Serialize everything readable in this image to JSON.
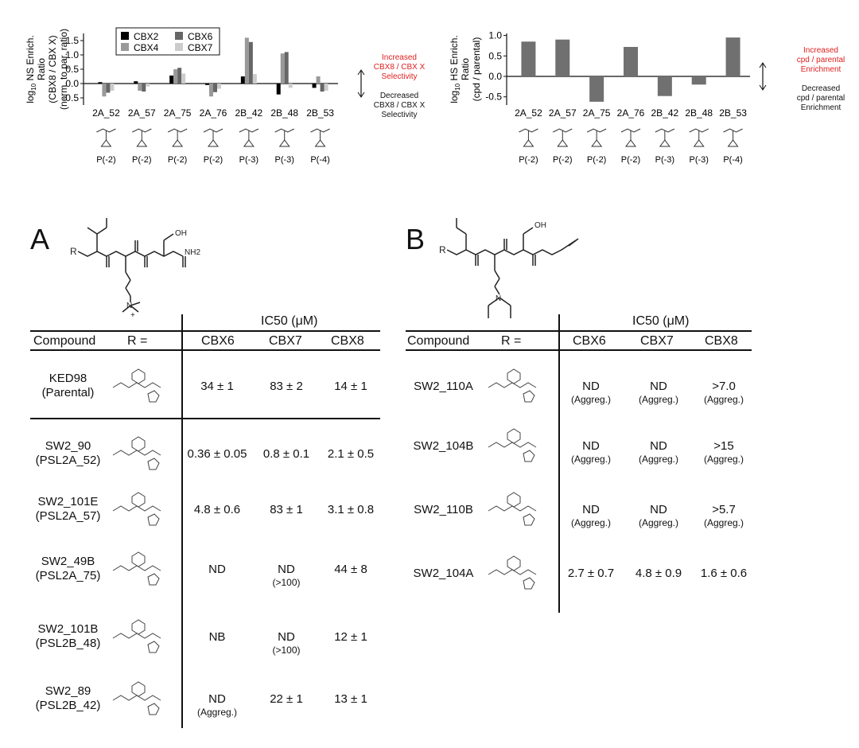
{
  "chart_data": [
    {
      "type": "bar",
      "categories": [
        "2A_52",
        "2A_57",
        "2A_75",
        "2A_76",
        "2B_42",
        "2B_48",
        "2B_53"
      ],
      "series": [
        {
          "name": "CBX2",
          "values": [
            0.05,
            0.08,
            0.28,
            -0.05,
            0.25,
            -0.38,
            -0.15
          ],
          "color": "#000000"
        },
        {
          "name": "CBX4",
          "values": [
            -0.45,
            -0.25,
            0.5,
            -0.45,
            1.6,
            1.05,
            0.25
          ],
          "color": "#999999"
        },
        {
          "name": "CBX6",
          "values": [
            -0.32,
            -0.28,
            0.55,
            -0.3,
            1.45,
            1.1,
            -0.28
          ],
          "color": "#666666"
        },
        {
          "name": "CBX7",
          "values": [
            -0.25,
            -0.1,
            0.35,
            -0.18,
            0.33,
            -0.15,
            -0.25
          ],
          "color": "#cccccc"
        }
      ],
      "ylabel_lines": [
        "log10 NS Enrich.",
        "Ratio",
        "(CBX8 / CBX X)",
        "(norm. to par. ratio)"
      ],
      "ylim": [
        -0.75,
        1.75
      ],
      "yticks": [
        "-0.5",
        "0.0",
        "0.5",
        "1.0",
        "1.5"
      ],
      "tick_values": [
        -0.5,
        0,
        0.5,
        1,
        1.5
      ],
      "legend": "top-left",
      "residue_labels": [
        "P(-2)",
        "P(-2)",
        "P(-2)",
        "P(-2)",
        "P(-3)",
        "P(-3)",
        "P(-4)"
      ],
      "annotation_up": [
        "Increased",
        "CBX8 / CBX X",
        "Selectivity"
      ],
      "annotation_down": [
        "Decreased",
        "CBX8 / CBX X",
        "Selectivity"
      ]
    },
    {
      "type": "bar",
      "categories": [
        "2A_52",
        "2A_57",
        "2A_75",
        "2A_76",
        "2B_42",
        "2B_48",
        "2B_53"
      ],
      "series": [
        {
          "values": [
            0.85,
            0.9,
            -0.62,
            0.72,
            -0.48,
            -0.2,
            0.95
          ],
          "color": "#707070"
        }
      ],
      "ylabel_lines": [
        "log10 HS Enrich.",
        "Ratio",
        "(cpd / parental)"
      ],
      "ylim": [
        -0.7,
        1.05
      ],
      "yticks": [
        "-0.5",
        "0.0",
        "0.5",
        "1.0"
      ],
      "tick_values": [
        -0.5,
        0,
        0.5,
        1
      ],
      "residue_labels": [
        "P(-2)",
        "P(-2)",
        "P(-2)",
        "P(-2)",
        "P(-3)",
        "P(-3)",
        "P(-4)"
      ],
      "annotation_up": [
        "Increased",
        "cpd / parental",
        "Enrichment"
      ],
      "annotation_down": [
        "Decreased",
        "cpd / parental",
        "Enrichment"
      ]
    }
  ],
  "panelA": {
    "letter": "A",
    "ic50_header": "IC50 (μM)",
    "col_compound": "Compound",
    "col_r": "R =",
    "columns": [
      "CBX6",
      "CBX7",
      "CBX8"
    ],
    "rows": [
      {
        "name": "KED98",
        "sub": "(Parental)",
        "v": [
          {
            "main": "34 ± 1",
            "note": ""
          },
          {
            "main": "83 ± 2",
            "note": ""
          },
          {
            "main": "14 ± 1",
            "note": ""
          }
        ]
      },
      {
        "name": "SW2_90",
        "sub": "(PSL2A_52)",
        "v": [
          {
            "main": "0.36 ± 0.05",
            "note": ""
          },
          {
            "main": "0.8 ± 0.1",
            "note": ""
          },
          {
            "main": "2.1 ± 0.5",
            "note": ""
          }
        ]
      },
      {
        "name": "SW2_101E",
        "sub": "(PSL2A_57)",
        "v": [
          {
            "main": "4.8 ± 0.6",
            "note": ""
          },
          {
            "main": "83 ± 1",
            "note": ""
          },
          {
            "main": "3.1 ± 0.8",
            "note": ""
          }
        ]
      },
      {
        "name": "SW2_49B",
        "sub": "(PSL2A_75)",
        "v": [
          {
            "main": "ND",
            "note": ""
          },
          {
            "main": "ND",
            "note": "(>100)"
          },
          {
            "main": "44 ± 8",
            "note": ""
          }
        ]
      },
      {
        "name": "SW2_101B",
        "sub": "(PSL2B_48)",
        "v": [
          {
            "main": "NB",
            "note": ""
          },
          {
            "main": "ND",
            "note": "(>100)"
          },
          {
            "main": "12 ± 1",
            "note": ""
          }
        ]
      },
      {
        "name": "SW2_89",
        "sub": "(PSL2B_42)",
        "v": [
          {
            "main": "ND",
            "note": "(Aggreg.)"
          },
          {
            "main": "22 ± 1",
            "note": ""
          },
          {
            "main": "13 ± 1",
            "note": ""
          }
        ]
      }
    ]
  },
  "panelB": {
    "letter": "B",
    "ic50_header": "IC50 (μM)",
    "col_compound": "Compound",
    "col_r": "R =",
    "columns": [
      "CBX6",
      "CBX7",
      "CBX8"
    ],
    "rows": [
      {
        "name": "SW2_110A",
        "v": [
          {
            "main": "ND",
            "note": "(Aggreg.)"
          },
          {
            "main": "ND",
            "note": "(Aggreg.)"
          },
          {
            "main": ">7.0",
            "note": "(Aggreg.)"
          }
        ]
      },
      {
        "name": "SW2_104B",
        "v": [
          {
            "main": "ND",
            "note": "(Aggreg.)"
          },
          {
            "main": "ND",
            "note": "(Aggreg.)"
          },
          {
            "main": ">15",
            "note": "(Aggreg.)"
          }
        ]
      },
      {
        "name": "SW2_110B",
        "v": [
          {
            "main": "ND",
            "note": "(Aggreg.)"
          },
          {
            "main": "ND",
            "note": "(Aggreg.)"
          },
          {
            "main": ">5.7",
            "note": "(Aggreg.)"
          }
        ]
      },
      {
        "name": "SW2_104A",
        "v": [
          {
            "main": "2.7 ± 0.7",
            "note": ""
          },
          {
            "main": "4.8 ± 0.9",
            "note": ""
          },
          {
            "main": "1.6 ± 0.6",
            "note": ""
          }
        ]
      }
    ]
  },
  "structure_labels": {
    "oh": "OH",
    "nh2": "NH2",
    "n_plus": "N",
    "plus": "+",
    "h": "H",
    "n": "N",
    "r": "R"
  }
}
